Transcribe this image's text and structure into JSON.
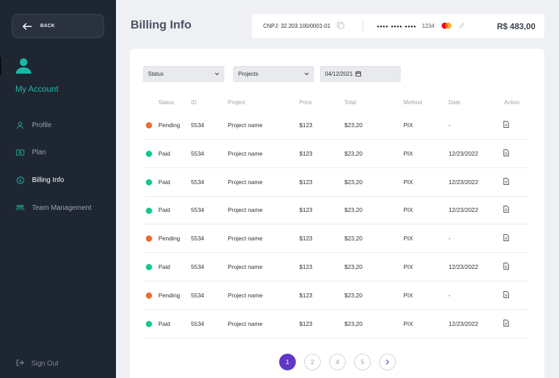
{
  "sidebar": {
    "back_label": "BACK",
    "account_title": "My Account",
    "items": [
      {
        "label": "Profile",
        "icon": "user-icon",
        "active": false
      },
      {
        "label": "Plan",
        "icon": "banknote-icon",
        "active": false
      },
      {
        "label": "Billing Info",
        "icon": "dollar-circle-icon",
        "active": true
      },
      {
        "label": "Team Management",
        "icon": "team-icon",
        "active": false
      }
    ],
    "signout_label": "Sign Out"
  },
  "header": {
    "title": "Billing Info",
    "cnpj": "CNPJ: 32.203.100/0001-01",
    "card_mask": "•••• •••• ••••",
    "card_last4": "1234",
    "balance": "R$ 483,00"
  },
  "filters": {
    "status": "Status",
    "projects": "Projects",
    "date": "04/12/2021"
  },
  "table": {
    "columns": [
      "Status",
      "ID",
      "Project",
      "Price",
      "Total",
      "Method",
      "Date",
      "Action"
    ],
    "rows": [
      {
        "status": "Pending",
        "id": "5534",
        "project": "Project name",
        "price": "$123",
        "total": "$23,20",
        "method": "PIX",
        "date": "-"
      },
      {
        "status": "Paid",
        "id": "5534",
        "project": "Project name",
        "price": "$123",
        "total": "$23,20",
        "method": "PIX",
        "date": "12/23/2022"
      },
      {
        "status": "Paid",
        "id": "5534",
        "project": "Project name",
        "price": "$123",
        "total": "$23,20",
        "method": "PIX",
        "date": "12/23/2022"
      },
      {
        "status": "Paid",
        "id": "5534",
        "project": "Project name",
        "price": "$123",
        "total": "$23,20",
        "method": "PIX",
        "date": "12/23/2022"
      },
      {
        "status": "Pending",
        "id": "5534",
        "project": "Project name",
        "price": "$123",
        "total": "$23,20",
        "method": "PIX",
        "date": "-"
      },
      {
        "status": "Paid",
        "id": "5534",
        "project": "Project name",
        "price": "$123",
        "total": "$23,20",
        "method": "PIX",
        "date": "12/23/2022"
      },
      {
        "status": "Pending",
        "id": "5534",
        "project": "Project name",
        "price": "$123",
        "total": "$23,20",
        "method": "PIX",
        "date": "-"
      },
      {
        "status": "Paid",
        "id": "5534",
        "project": "Project name",
        "price": "$123",
        "total": "$23,20",
        "method": "PIX",
        "date": "12/23/2022"
      }
    ]
  },
  "pagination": {
    "pages": [
      "1",
      "2",
      "4",
      "5"
    ],
    "current": "1"
  },
  "colors": {
    "pending": "#f2692a",
    "paid": "#10c98f",
    "accent": "#6236c6",
    "teal": "#1bb8a6"
  }
}
